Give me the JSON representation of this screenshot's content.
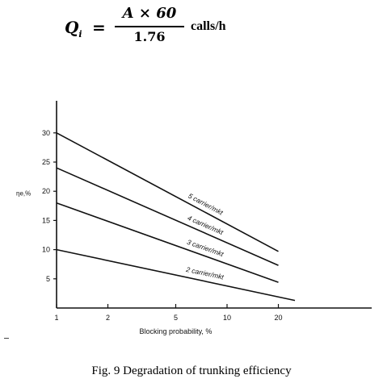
{
  "formula": {
    "lhs": "Q",
    "lhs_sub": "i",
    "equals": "=",
    "numerator": "A × 60",
    "denominator": "1.76",
    "unit": "calls/h"
  },
  "caption": "Fig. 9 Degradation of trunking efficiency",
  "chart_data": {
    "type": "line",
    "title": "",
    "xlabel": "Blocking probability, %",
    "ylabel": "ηe,%",
    "x_scale": "log",
    "xlim": [
      1,
      40
    ],
    "ylim": [
      0,
      34
    ],
    "x_ticks": [
      1,
      2,
      5,
      10,
      20
    ],
    "x_tick_labels": [
      "1",
      "2",
      "5",
      "10",
      "20"
    ],
    "y_ticks": [
      5,
      10,
      15,
      20,
      25,
      30
    ],
    "y_tick_labels": [
      "5",
      "10",
      "15",
      "20",
      "25",
      "30"
    ],
    "grid": false,
    "legend": "none",
    "series": [
      {
        "name": "5 carrier/mkt",
        "x": [
          1,
          20
        ],
        "y": [
          30,
          9.7
        ]
      },
      {
        "name": "4 carrier/mkt",
        "x": [
          1,
          20
        ],
        "y": [
          24,
          7.3
        ]
      },
      {
        "name": "3 carrier/mkt",
        "x": [
          1,
          20
        ],
        "y": [
          18,
          4.4
        ]
      },
      {
        "name": "2 carrier/mkt",
        "x": [
          1,
          25
        ],
        "y": [
          10,
          1.3
        ]
      }
    ],
    "colors": {
      "line": "#111111",
      "axis": "#111111"
    }
  }
}
